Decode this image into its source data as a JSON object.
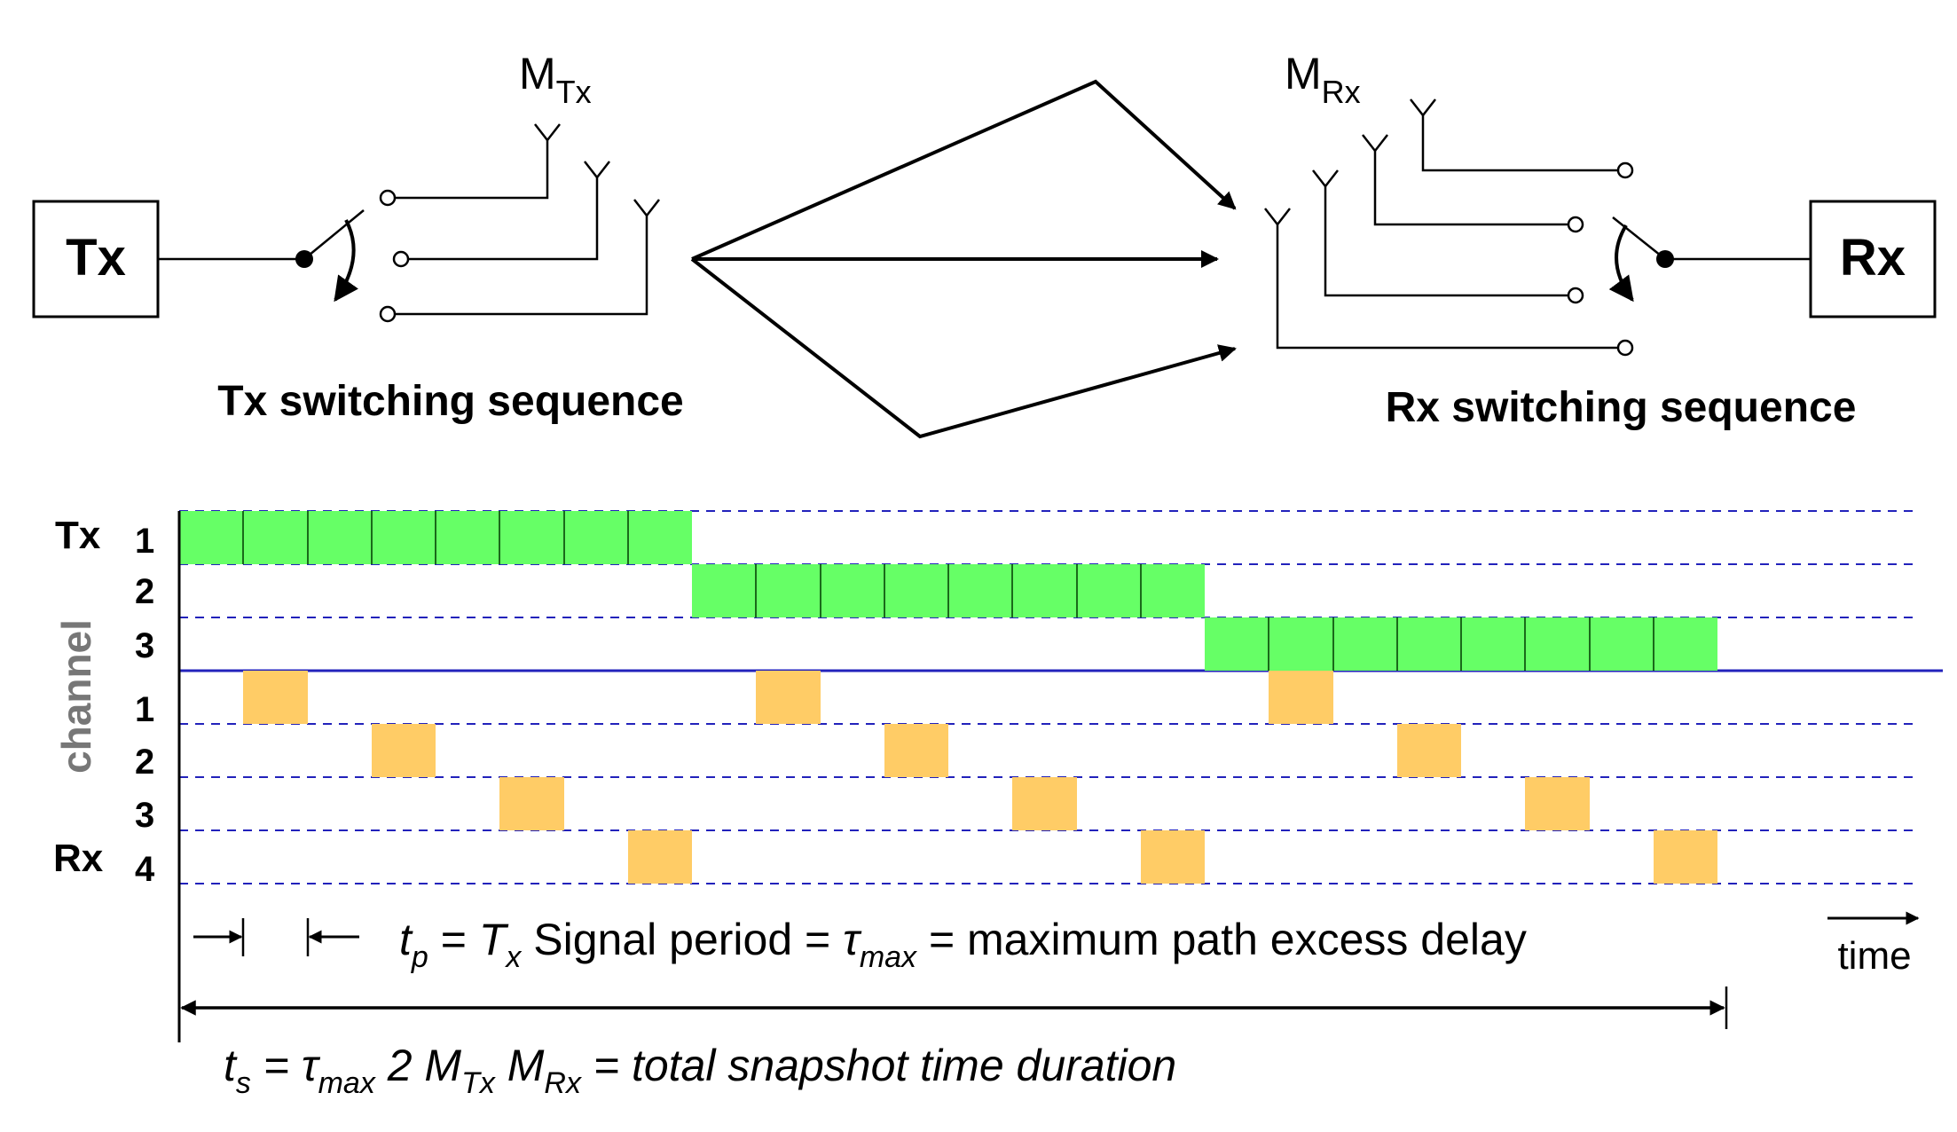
{
  "tx_box": {
    "label": "Tx"
  },
  "rx_box": {
    "label": "Rx"
  },
  "m_tx": {
    "main": "M",
    "sub": "Tx"
  },
  "m_rx": {
    "main": "M",
    "sub": "Rx"
  },
  "tx_caption": "Tx switching sequence",
  "rx_caption": "Rx switching sequence",
  "timing": {
    "tx_group_label": "Tx",
    "rx_group_label": "Rx",
    "channel_axis_label": "channel",
    "tx_channels": [
      "1",
      "2",
      "3"
    ],
    "rx_channels": [
      "1",
      "2",
      "3",
      "4"
    ],
    "time_label": "time",
    "tp_text": {
      "t": "t",
      "t_sub": "p",
      "part1": " = ",
      "T": "T",
      "T_sub": "x",
      "part2": " Signal period = ",
      "tau": "τ",
      "tau_sub": "max",
      "part3": " = maximum path excess delay"
    },
    "ts_text": {
      "t": "t",
      "t_sub": "s",
      "part1": " = ",
      "tau": "τ",
      "tau_sub": "max",
      "part2": " 2 M",
      "m1_sub": "Tx",
      "part3": " M",
      "m2_sub": "Rx",
      "part4": " = total snapshot time duration"
    },
    "tx_slots_per_channel": 8,
    "rx_channel_count": 4,
    "tx_color": "#66ff66",
    "rx_color": "#ffcc66",
    "grid_color": "#2222bb"
  }
}
